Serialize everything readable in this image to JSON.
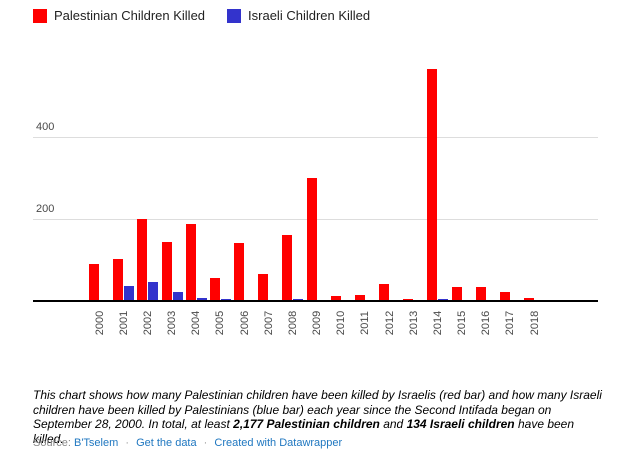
{
  "chart_data": {
    "type": "bar",
    "categories": [
      "2000",
      "2001",
      "2002",
      "2003",
      "2004",
      "2005",
      "2006",
      "2007",
      "2008",
      "2009",
      "2010",
      "2011",
      "2012",
      "2013",
      "2014",
      "2015",
      "2016",
      "2017",
      "2018"
    ],
    "series": [
      {
        "name": "Palestinian Children Killed",
        "color": "#ff0000",
        "values": [
          90,
          102,
          200,
          144,
          187,
          55,
          140,
          66,
          160,
          298,
          13,
          14,
          42,
          4,
          564,
          34,
          35,
          21,
          8
        ]
      },
      {
        "name": "Israeli Children Killed",
        "color": "#3333cc",
        "values": [
          0,
          36,
          47,
          21,
          8,
          6,
          2,
          0,
          4,
          0,
          0,
          2,
          1,
          0,
          4,
          1,
          1,
          1,
          0
        ]
      }
    ],
    "title": "",
    "xlabel": "",
    "ylabel": "",
    "yticks": [
      200,
      400
    ],
    "ylim": [
      0,
      580
    ],
    "grid": true,
    "legend_position": "top-left",
    "axis_color": "#000000",
    "gridline_color": "#dddddd",
    "tick_label_color": "#494949"
  },
  "caption": {
    "segments": [
      {
        "text": "This chart shows how many Palestinian children have been killed by Israelis (red bar) and how many Israeli children have been killed by Palestinians (blue bar) each year since the Second Intifada began on September 28, 2000. In total, at least ",
        "bold": false
      },
      {
        "text": "2,177 Palestinian children",
        "bold": true
      },
      {
        "text": " and ",
        "bold": false
      },
      {
        "text": "134 Israeli children",
        "bold": true
      },
      {
        "text": " have been killed.",
        "bold": false
      }
    ]
  },
  "footer": {
    "source_label": "Source:",
    "source_link": "B'Tselem",
    "get_data_link": "Get the data",
    "created_with_link": "Created with Datawrapper",
    "separator": "·"
  }
}
